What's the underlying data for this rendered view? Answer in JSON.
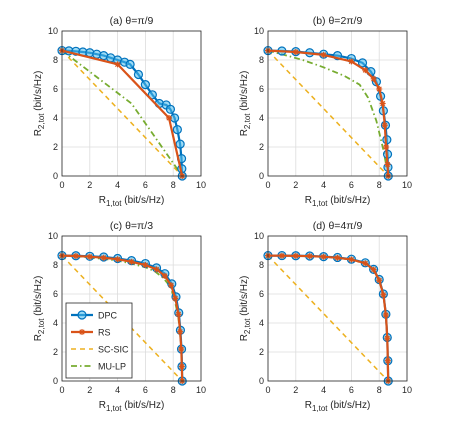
{
  "figure": {
    "legend": [
      {
        "name": "DPC",
        "color": "#0072BD",
        "style": "solid-circle"
      },
      {
        "name": "RS",
        "color": "#D95319",
        "style": "solid-star"
      },
      {
        "name": "SC-SIC",
        "color": "#EDB120",
        "style": "dashed"
      },
      {
        "name": "MU-LP",
        "color": "#77AC30",
        "style": "dashdot"
      }
    ]
  },
  "chart_data": [
    {
      "type": "line",
      "title": "(a) θ=π/9",
      "xlabel": "R1,tot (bit/s/Hz)",
      "ylabel": "R2,tot (bit/s/Hz)",
      "xlim": [
        0,
        10
      ],
      "ylim": [
        0,
        10
      ],
      "xticks": [
        "0",
        "2",
        "4",
        "6",
        "8",
        "10"
      ],
      "yticks": [
        "0",
        "2",
        "4",
        "6",
        "8",
        "10"
      ],
      "grid": true,
      "series": [
        {
          "name": "DPC",
          "color": "#0072BD",
          "x": [
            0,
            0.5,
            1,
            1.5,
            2,
            2.5,
            3,
            3.5,
            4,
            4.5,
            4.9,
            5.5,
            6,
            6.5,
            7,
            7.5,
            7.8,
            8.1,
            8.3,
            8.5,
            8.6,
            8.62,
            8.65
          ],
          "y": [
            8.65,
            8.63,
            8.6,
            8.55,
            8.5,
            8.4,
            8.3,
            8.15,
            8.0,
            7.85,
            7.7,
            7.0,
            6.3,
            5.6,
            5.0,
            4.9,
            4.6,
            4.0,
            3.2,
            2.2,
            1.2,
            0.5,
            0
          ]
        },
        {
          "name": "RS",
          "color": "#D95319",
          "x": [
            0,
            4.0,
            7.7,
            8.65
          ],
          "y": [
            8.65,
            7.7,
            4.0,
            0
          ]
        },
        {
          "name": "SC-SIC",
          "color": "#EDB120",
          "x": [
            0,
            8.65
          ],
          "y": [
            8.65,
            0
          ]
        },
        {
          "name": "MU-LP",
          "color": "#77AC30",
          "x": [
            0,
            5.0,
            8.65
          ],
          "y": [
            8.65,
            5.0,
            0
          ]
        }
      ]
    },
    {
      "type": "line",
      "title": "(b) θ=2π/9",
      "xlabel": "R1,tot (bit/s/Hz)",
      "ylabel": "R2,tot (bit/s/Hz)",
      "xlim": [
        0,
        10
      ],
      "ylim": [
        0,
        10
      ],
      "xticks": [
        "0",
        "2",
        "4",
        "6",
        "8",
        "10"
      ],
      "yticks": [
        "0",
        "2",
        "4",
        "6",
        "8",
        "10"
      ],
      "grid": true,
      "series": [
        {
          "name": "DPC",
          "color": "#0072BD",
          "x": [
            0,
            1,
            2,
            3,
            4,
            5,
            6,
            6.8,
            7.4,
            7.8,
            8.1,
            8.3,
            8.45,
            8.55,
            8.6,
            8.63,
            8.65
          ],
          "y": [
            8.65,
            8.62,
            8.58,
            8.5,
            8.4,
            8.3,
            8.1,
            7.8,
            7.2,
            6.5,
            5.5,
            4.5,
            3.5,
            2.5,
            1.5,
            0.6,
            0
          ]
        },
        {
          "name": "RS",
          "color": "#D95319",
          "x": [
            0,
            2,
            4,
            6,
            7.0,
            7.6,
            8.0,
            8.25,
            8.4,
            8.5,
            8.6,
            8.65
          ],
          "y": [
            8.65,
            8.55,
            8.35,
            7.9,
            7.3,
            6.7,
            6.0,
            5.0,
            3.5,
            2.0,
            0.8,
            0
          ]
        },
        {
          "name": "SC-SIC",
          "color": "#EDB120",
          "x": [
            0,
            8.65
          ],
          "y": [
            8.65,
            0
          ]
        },
        {
          "name": "MU-LP",
          "color": "#77AC30",
          "x": [
            0,
            1.0,
            2.5,
            4.0,
            5.5,
            6.6,
            7.2,
            7.8,
            8.3,
            8.65
          ],
          "y": [
            8.65,
            8.4,
            8.0,
            7.5,
            6.9,
            6.3,
            5.4,
            3.8,
            1.8,
            0
          ]
        }
      ]
    },
    {
      "type": "line",
      "title": "(c) θ=π/3",
      "xlabel": "R1,tot (bit/s/Hz)",
      "ylabel": "R2,tot (bit/s/Hz)",
      "xlim": [
        0,
        10
      ],
      "ylim": [
        0,
        10
      ],
      "xticks": [
        "0",
        "2",
        "4",
        "6",
        "8",
        "10"
      ],
      "yticks": [
        "0",
        "2",
        "4",
        "6",
        "8",
        "10"
      ],
      "grid": true,
      "series": [
        {
          "name": "DPC",
          "color": "#0072BD",
          "x": [
            0,
            1,
            2,
            3,
            4,
            5,
            6,
            6.8,
            7.4,
            7.9,
            8.2,
            8.4,
            8.52,
            8.6,
            8.63,
            8.65
          ],
          "y": [
            8.65,
            8.64,
            8.6,
            8.55,
            8.45,
            8.3,
            8.1,
            7.8,
            7.4,
            6.7,
            5.8,
            4.7,
            3.5,
            2.2,
            1.0,
            0
          ]
        },
        {
          "name": "RS",
          "color": "#D95319",
          "x": [
            0,
            1,
            2,
            3,
            4,
            5,
            6,
            6.8,
            7.4,
            7.85,
            8.15,
            8.38,
            8.5,
            8.58,
            8.62,
            8.65
          ],
          "y": [
            8.65,
            8.62,
            8.57,
            8.5,
            8.4,
            8.22,
            8.0,
            7.7,
            7.25,
            6.6,
            5.7,
            4.6,
            3.4,
            2.2,
            1.0,
            0
          ]
        },
        {
          "name": "SC-SIC",
          "color": "#EDB120",
          "x": [
            0,
            8.65
          ],
          "y": [
            8.65,
            0
          ]
        },
        {
          "name": "MU-LP",
          "color": "#77AC30",
          "x": [
            0,
            1,
            2,
            3,
            4,
            5,
            6,
            6.7,
            7.3,
            7.8,
            8.1,
            8.35,
            8.5,
            8.58,
            8.62,
            8.65
          ],
          "y": [
            8.65,
            8.6,
            8.52,
            8.42,
            8.3,
            8.1,
            7.85,
            7.55,
            7.1,
            6.5,
            5.6,
            4.5,
            3.3,
            2.1,
            1.0,
            0
          ]
        }
      ]
    },
    {
      "type": "line",
      "title": "(d) θ=4π/9",
      "xlabel": "R1,tot (bit/s/Hz)",
      "ylabel": "R2,tot (bit/s/Hz)",
      "xlim": [
        0,
        10
      ],
      "ylim": [
        0,
        10
      ],
      "xticks": [
        "0",
        "2",
        "4",
        "6",
        "8",
        "10"
      ],
      "yticks": [
        "0",
        "2",
        "4",
        "6",
        "8",
        "10"
      ],
      "grid": true,
      "series": [
        {
          "name": "DPC",
          "color": "#0072BD",
          "x": [
            0,
            1,
            2,
            3,
            4,
            5,
            6,
            7,
            7.6,
            8.0,
            8.3,
            8.48,
            8.58,
            8.62,
            8.65
          ],
          "y": [
            8.65,
            8.65,
            8.64,
            8.62,
            8.58,
            8.52,
            8.4,
            8.15,
            7.7,
            7.0,
            6.0,
            4.6,
            3.0,
            1.4,
            0
          ]
        },
        {
          "name": "RS",
          "color": "#D95319",
          "x": [
            0,
            1,
            2,
            3,
            4,
            5,
            6,
            7,
            7.6,
            8.0,
            8.3,
            8.48,
            8.58,
            8.62,
            8.65
          ],
          "y": [
            8.65,
            8.64,
            8.63,
            8.61,
            8.57,
            8.5,
            8.38,
            8.12,
            7.68,
            6.95,
            5.95,
            4.55,
            2.95,
            1.4,
            0
          ]
        },
        {
          "name": "SC-SIC",
          "color": "#EDB120",
          "x": [
            0,
            8.65
          ],
          "y": [
            8.65,
            0
          ]
        },
        {
          "name": "MU-LP",
          "color": "#77AC30",
          "x": [
            0,
            1,
            2,
            3,
            4,
            5,
            6,
            7,
            7.6,
            8.0,
            8.3,
            8.48,
            8.58,
            8.62,
            8.65
          ],
          "y": [
            8.65,
            8.64,
            8.62,
            8.6,
            8.56,
            8.49,
            8.36,
            8.1,
            7.65,
            6.92,
            5.9,
            4.5,
            2.9,
            1.35,
            0
          ]
        }
      ]
    }
  ]
}
